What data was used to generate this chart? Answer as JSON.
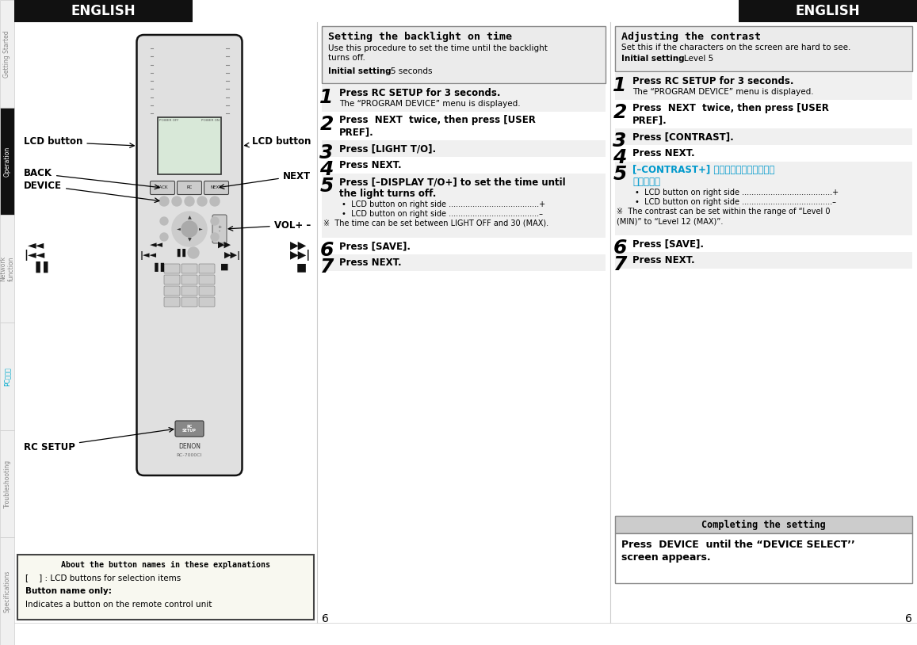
{
  "bg_color": "#ffffff",
  "header_bg": "#111111",
  "header_text": "ENGLISH",
  "sidebar_items": [
    "Getting Started",
    "Operation",
    "Network\nfunction",
    "PCアプリ",
    "Troubleshooting",
    "Specifications"
  ],
  "sidebar_active_idx": 1,
  "sidebar_pc_color": "#00aacc",
  "sidebar_inactive_color": "#888888",
  "left_labels": {
    "lcd_left": "LCD button",
    "lcd_right": "LCD button",
    "back": "BACK",
    "device": "DEVICE",
    "next": "NEXT",
    "vol": "VOL+ –",
    "rc_setup": "RC SETUP"
  },
  "notice_title": "About the button names in these explanations",
  "notice_lines": [
    "[    ] : LCD buttons for selection items",
    "Button name only:",
    "Indicates a button on the remote control unit"
  ],
  "notice_bold": [
    false,
    true,
    false
  ],
  "mid_info_title": "Setting the backlight on time",
  "mid_info_body1": "Use this procedure to set the time until the backlight",
  "mid_info_body2": "turns off.",
  "mid_info_initial_bold": "Initial setting",
  "mid_info_initial_rest": ": 5 seconds",
  "mid_steps": [
    {
      "num": "1",
      "text_bold": "Press RC SETUP for 3 seconds.",
      "sub": "The “PROGRAM DEVICE” menu is displayed."
    },
    {
      "num": "2",
      "text_bold": "Press  NEXT  twice, then press [USER",
      "text_bold2": "PREF]."
    },
    {
      "num": "3",
      "text_bold": "Press [LIGHT T/O]."
    },
    {
      "num": "4",
      "text_bold": "Press NEXT."
    },
    {
      "num": "5",
      "text_bold": "Press [–DISPLAY T/O+] to set the time until",
      "text_bold2": "the light turns off.",
      "bullets": [
        "•  LCD button on right side ......................................+",
        "•  LCD button on right side ......................................–"
      ],
      "note": "※  The time can be set between LIGHT OFF and 30 (MAX)."
    },
    {
      "num": "6",
      "text_bold": "Press [SAVE]."
    },
    {
      "num": "7",
      "text_bold": "Press NEXT."
    }
  ],
  "right_info_title": "Adjusting the contrast",
  "right_info_body": "Set this if the characters on the screen are hard to see.",
  "right_info_initial_bold": "Initial setting",
  "right_info_initial_rest": ": Level 5",
  "right_steps": [
    {
      "num": "1",
      "text_bold": "Press RC SETUP for 3 seconds.",
      "sub": "The “PROGRAM DEVICE” menu is displayed."
    },
    {
      "num": "2",
      "text_bold": "Press  NEXT  twice, then press [USER",
      "text_bold2": "PREF]."
    },
    {
      "num": "3",
      "text_bold": "Press [CONTRAST]."
    },
    {
      "num": "4",
      "text_bold": "Press NEXT."
    },
    {
      "num": "5",
      "text_cyan": "[–CONTRAST+] を押し、コントラストを",
      "text_cyan2": "設定する。",
      "bullets": [
        "•  LCD button on right side ......................................+",
        "•  LCD button on right side ......................................–"
      ],
      "note": "※  The contrast can be set within the range of “Level 0",
      "note2": "(MIN)” to “Level 12 (MAX)”."
    },
    {
      "num": "6",
      "text_bold": "Press [SAVE]."
    },
    {
      "num": "7",
      "text_bold": "Press NEXT."
    }
  ],
  "comp_title": "Completing the setting",
  "comp_body1": "Press  DEVICE  until the “DEVICE SELECT’’",
  "comp_body2": "screen appears.",
  "page_num": "6"
}
